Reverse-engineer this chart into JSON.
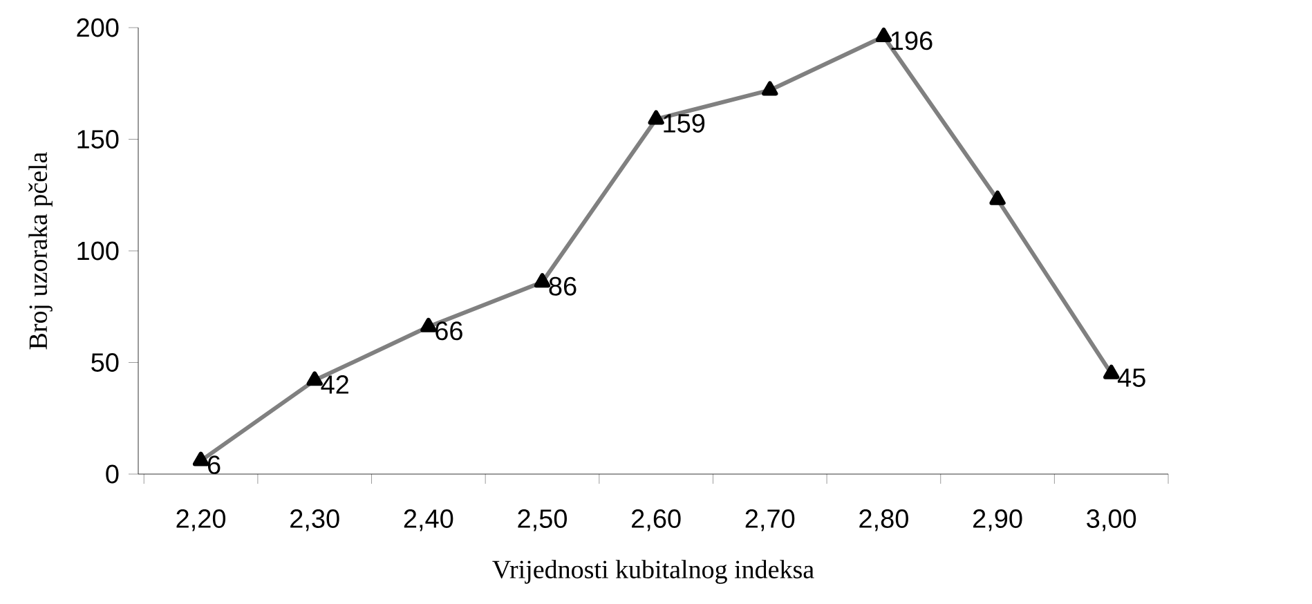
{
  "chart_data": {
    "type": "line",
    "xlabel": "Vrijednosti kubitalnog indeksa",
    "ylabel": "Broj uzoraka pčela",
    "categories": [
      "2,20",
      "2,30",
      "2,40",
      "2,50",
      "2,60",
      "2,70",
      "2,80",
      "2,90",
      "3,00"
    ],
    "series": [
      {
        "color": "#808080",
        "values": [
          6,
          42,
          66,
          86,
          159,
          172,
          196,
          123,
          45
        ],
        "value_labels": [
          "6",
          "42",
          "66",
          "86",
          "159",
          null,
          "196",
          null,
          "45"
        ]
      }
    ],
    "ylim": [
      0,
      200
    ],
    "yticks": [
      0,
      50,
      100,
      150,
      200
    ],
    "marker": "triangle",
    "line_style": "solid",
    "grid": false
  }
}
